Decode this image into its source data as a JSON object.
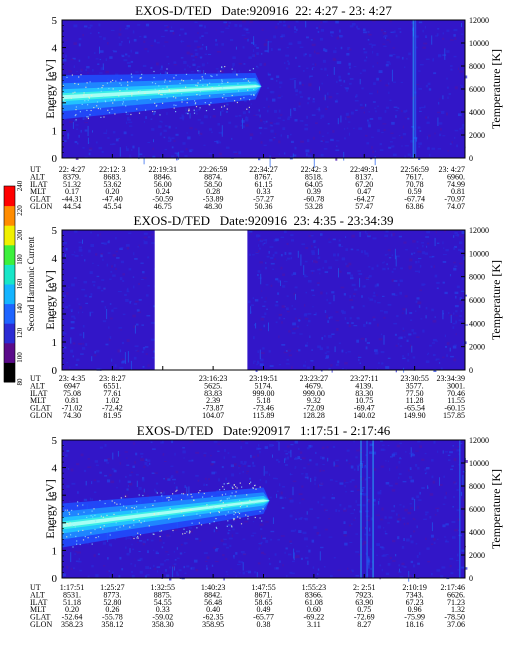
{
  "figure": {
    "colorbar": {
      "label": "Second Harmonic Current",
      "ticks": [
        "80",
        "100",
        "120",
        "140",
        "160",
        "180",
        "200",
        "220",
        "240"
      ],
      "colors": [
        "#000000",
        "#5a0a8a",
        "#2b2bd4",
        "#1e64ff",
        "#14b4ff",
        "#18e6c8",
        "#3cf03c",
        "#f0f000",
        "#ff8c00",
        "#ff0000"
      ]
    }
  },
  "chart_data": [
    {
      "type": "heatmap",
      "title": "EXOS-D/TED   Date:920916  22: 4:27 - 23: 4:27",
      "ylabel": "Energy [eV]",
      "y2label": "Temperature [K]",
      "ylim": [
        0,
        5
      ],
      "y2lim": [
        0,
        12000
      ],
      "yticks": [
        "0",
        "1",
        "2",
        "3",
        "4",
        "5"
      ],
      "y2ticks": [
        "0",
        "2000",
        "4000",
        "6000",
        "8000",
        "10000",
        "12000"
      ],
      "gap": null,
      "band": {
        "start_energy": 2.2,
        "end_energy": 2.6,
        "fade_at": 0.48
      },
      "vlines": [
        0.87,
        0.875
      ],
      "row_labels": [
        "UT",
        "ALT",
        "ILAT",
        "MLT",
        "GLAT",
        "GLON"
      ],
      "columns": [
        [
          "22: 4:27",
          "8379.",
          "51.32",
          "0.17",
          "-44.31",
          "44.54"
        ],
        [
          "22:12: 3",
          "8683.",
          "53.62",
          "0.20",
          "-47.40",
          "45.54"
        ],
        [
          "22:19:31",
          "8846.",
          "56.00",
          "0.24",
          "-50.59",
          "46.75"
        ],
        [
          "22:26:59",
          "8874.",
          "58.50",
          "0.28",
          "-53.89",
          "48.30"
        ],
        [
          "22:34:27",
          "8767.",
          "61.15",
          "0.33",
          "-57.27",
          "50.36"
        ],
        [
          "22:42: 3",
          "8518.",
          "64.05",
          "0.39",
          "-60.78",
          "53.28"
        ],
        [
          "22:49:31",
          "8137.",
          "67.20",
          "0.47",
          "-64.27",
          "57.47"
        ],
        [
          "22:56:59",
          "7617.",
          "70.78",
          "0.59",
          "-67.74",
          "63.86"
        ],
        [
          "23: 4:27",
          "6960.",
          "74.99",
          "0.81",
          "-70.97",
          "74.07"
        ]
      ]
    },
    {
      "type": "heatmap",
      "title": "EXOS-D/TED   Date:920916  23: 4:35 - 23:34:39",
      "ylabel": "Energy [eV]",
      "y2label": "Temperature [K]",
      "ylim": [
        0,
        5
      ],
      "y2lim": [
        0,
        12000
      ],
      "yticks": [
        "0",
        "1",
        "2",
        "3",
        "4",
        "5"
      ],
      "y2ticks": [
        "0",
        "2000",
        "4000",
        "6000",
        "8000",
        "10000",
        "12000"
      ],
      "gap": [
        0.23,
        0.46
      ],
      "band": null,
      "vlines": [],
      "row_labels": [
        "UT",
        "ALT",
        "ILAT",
        "MLT",
        "GLAT",
        "GLON"
      ],
      "columns": [
        [
          "23: 4:35",
          "6947",
          "75.08",
          "0.81",
          "-71.02",
          "74.30"
        ],
        [
          "23: 8:27",
          "6551.",
          "77.61",
          "1.02",
          "-72.42",
          "81.95"
        ],
        [
          "",
          "",
          "",
          "",
          "",
          ""
        ],
        [
          "23:16:23",
          "5625.",
          "83.83",
          "2.39",
          "-73.87",
          "104.07"
        ],
        [
          "23:19:51",
          "5174.",
          "999.00",
          "5.18",
          "-73.46",
          "115.89"
        ],
        [
          "23:23:27",
          "4679.",
          "999.00",
          "9.32",
          "-72.09",
          "128.28"
        ],
        [
          "23:27:11",
          "4139.",
          "83.30",
          "10.75",
          "-69.47",
          "140.02"
        ],
        [
          "23:30:55",
          "3577.",
          "77.50",
          "11.28",
          "-65.54",
          "149.90"
        ],
        [
          "23:34:39",
          "3001.",
          "70.46",
          "11.55",
          "-60.15",
          "157.85"
        ]
      ]
    },
    {
      "type": "heatmap",
      "title": "EXOS-D/TED   Date:920917   1:17:51 - 2:17:46",
      "ylabel": "Energy [eV]",
      "y2label": "Temperature [K]",
      "ylim": [
        0,
        5
      ],
      "y2lim": [
        0,
        12000
      ],
      "yticks": [
        "0",
        "1",
        "2",
        "3",
        "4",
        "5"
      ],
      "y2ticks": [
        "0",
        "2000",
        "4000",
        "6000",
        "8000",
        "10000",
        "12000"
      ],
      "gap": null,
      "band": {
        "start_energy": 1.9,
        "end_energy": 2.8,
        "fade_at": 0.5
      },
      "vlines": [
        0.74,
        0.755,
        0.77,
        0.985
      ],
      "row_labels": [
        "UT",
        "ALT",
        "ILAT",
        "MLT",
        "GLAT",
        "GLON"
      ],
      "columns": [
        [
          "1:17:51",
          "8531.",
          "51.18",
          "0.20",
          "-52.64",
          "358.23"
        ],
        [
          "1:25:27",
          "8773.",
          "52.80",
          "0.26",
          "-55.78",
          "358.12"
        ],
        [
          "1:32:55",
          "8875.",
          "54.55",
          "0.33",
          "-59.02",
          "358.30"
        ],
        [
          "1:40:23",
          "8842.",
          "56.48",
          "0.40",
          "-62.35",
          "358.95"
        ],
        [
          "1:47:55",
          "8671.",
          "58.65",
          "0.49",
          "-65.77",
          "0.38"
        ],
        [
          "1:55:23",
          "8366.",
          "61.08",
          "0.60",
          "-69.22",
          "3.11"
        ],
        [
          "2: 2:51",
          "7923.",
          "63.90",
          "0.75",
          "-72.69",
          "8.27"
        ],
        [
          "2:10:19",
          "7343.",
          "67.23",
          "0.96",
          "-75.99",
          "18.16"
        ],
        [
          "2:17:46",
          "6626.",
          "71.23",
          "1.32",
          "-78.50",
          "37.06"
        ]
      ]
    }
  ]
}
